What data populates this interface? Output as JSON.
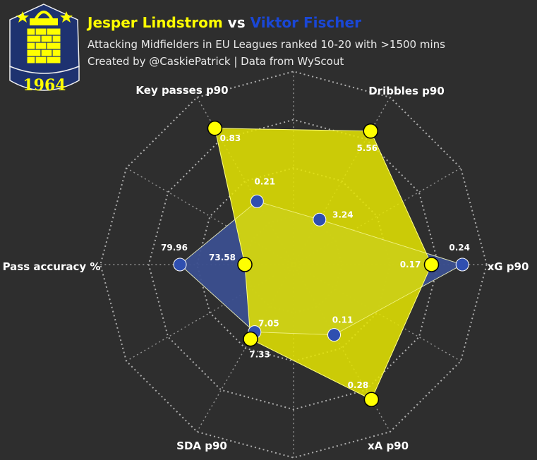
{
  "header": {
    "player1": "Jesper Lindstrom",
    "vs": "vs",
    "player2": "Viktor Fischer",
    "subtitle": "Attacking Midfielders in EU Leagues ranked 10-20 with >1500 mins",
    "credit": "Created by @CaskiePatrick | Data from WyScout"
  },
  "logo": {
    "year": "1964"
  },
  "colors": {
    "background": "#2e2e2e",
    "player1": "#ffff00",
    "player1_fill": "#e6e600",
    "player2": "#2f4fb0",
    "player2_fill": "#3b4f8f",
    "grid": "#bbbbbb",
    "title_player2": "#1a47d6"
  },
  "chart_data": {
    "type": "radar",
    "axes": [
      "Key passes p90",
      "Dribbles p90",
      "xG p90",
      "xA p90",
      "SDA p90",
      "Pass accuracy %"
    ],
    "series": [
      {
        "name": "Jesper Lindstrom",
        "values": [
          0.83,
          5.56,
          0.17,
          0.28,
          7.33,
          73.58
        ],
        "normalized": [
          0.97,
          0.95,
          0.85,
          0.96,
          0.53,
          0.3
        ]
      },
      {
        "name": "Viktor Fischer",
        "values": [
          0.21,
          3.24,
          0.24,
          0.11,
          7.05,
          79.96
        ],
        "normalized": [
          0.45,
          0.32,
          1.04,
          0.5,
          0.48,
          0.7
        ]
      }
    ],
    "grid_rings": 4,
    "grid_style": "dotted",
    "grid_sides": 12
  }
}
